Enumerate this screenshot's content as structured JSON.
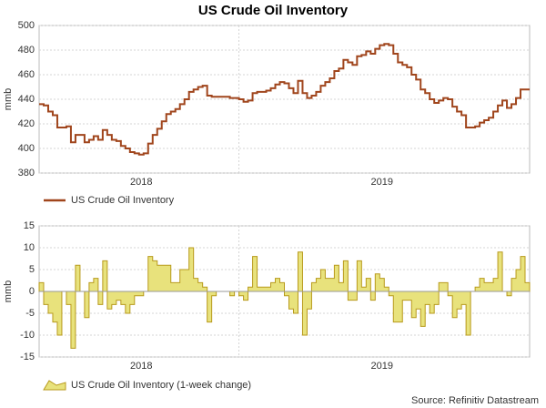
{
  "title": "US Crude Oil Inventory",
  "source": "Source: Refinitiv Datastream",
  "chart_data": [
    {
      "type": "line",
      "ylabel": "mmb",
      "categories": [
        null,
        null,
        null,
        null,
        null,
        null,
        null,
        null,
        null,
        null,
        null,
        null,
        null,
        null,
        null,
        null,
        null,
        null,
        null,
        null,
        null,
        null,
        "2018",
        null,
        null,
        null,
        null,
        null,
        null,
        null,
        null,
        null,
        null,
        null,
        null,
        null,
        null,
        null,
        null,
        null,
        null,
        null,
        null,
        null,
        null,
        null,
        null,
        null,
        null,
        null,
        null,
        null,
        null,
        null,
        null,
        null,
        null,
        null,
        null,
        null,
        null,
        null,
        null,
        null,
        null,
        null,
        null,
        null,
        null,
        null,
        null,
        null,
        null,
        null,
        null,
        "2019",
        null,
        null,
        null,
        null,
        null,
        null,
        null,
        null,
        null,
        null,
        null,
        null,
        null,
        null,
        null,
        null,
        null,
        null,
        null,
        null,
        null,
        null,
        null,
        null,
        null,
        null,
        null,
        null,
        null,
        null,
        null,
        null
      ],
      "series": [
        {
          "name": "US Crude Oil Inventory",
          "color": "#a0451c",
          "values": [
            436,
            435,
            430,
            427,
            417,
            417,
            418,
            405,
            411,
            411,
            405,
            407,
            410,
            407,
            415,
            411,
            407,
            406,
            402,
            400,
            397,
            396,
            395,
            396,
            404,
            411,
            416,
            422,
            428,
            430,
            432,
            436,
            440,
            446,
            448,
            450,
            451,
            443,
            442,
            442,
            442,
            442,
            441,
            441,
            440,
            438,
            439,
            445,
            446,
            446,
            447,
            449,
            452,
            454,
            453,
            449,
            445,
            455,
            445,
            441,
            443,
            446,
            451,
            454,
            457,
            463,
            465,
            472,
            470,
            468,
            475,
            476,
            479,
            477,
            481,
            484,
            485,
            484,
            477,
            470,
            468,
            466,
            460,
            456,
            448,
            445,
            440,
            437,
            439,
            441,
            440,
            434,
            430,
            427,
            417,
            417,
            418,
            421,
            423,
            425,
            430,
            435,
            439,
            433,
            436,
            441,
            448,
            448
          ]
        }
      ],
      "ylim": [
        380,
        500
      ],
      "yticks": [
        380,
        400,
        420,
        440,
        460,
        480,
        500
      ],
      "grid": true
    },
    {
      "type": "area",
      "ylabel": "mmb",
      "categories": [
        null,
        null,
        null,
        null,
        null,
        null,
        null,
        null,
        null,
        null,
        null,
        null,
        null,
        null,
        null,
        null,
        null,
        null,
        null,
        null,
        null,
        null,
        "2018",
        null,
        null,
        null,
        null,
        null,
        null,
        null,
        null,
        null,
        null,
        null,
        null,
        null,
        null,
        null,
        null,
        null,
        null,
        null,
        null,
        null,
        null,
        null,
        null,
        null,
        null,
        null,
        null,
        null,
        null,
        null,
        null,
        null,
        null,
        null,
        null,
        null,
        null,
        null,
        null,
        null,
        null,
        null,
        null,
        null,
        null,
        null,
        null,
        null,
        null,
        null,
        null,
        "2019",
        null,
        null,
        null,
        null,
        null,
        null,
        null,
        null,
        null,
        null,
        null,
        null,
        null,
        null,
        null,
        null,
        null,
        null,
        null,
        null,
        null,
        null,
        null,
        null,
        null,
        null,
        null,
        null,
        null,
        null,
        null,
        null
      ],
      "series": [
        {
          "name": "US Crude Oil Inventory (1-week change)",
          "color": "#e8e27c",
          "values": [
            2,
            -3,
            -5,
            -7,
            -10,
            0,
            -3,
            -13,
            6,
            0,
            -6,
            2,
            3,
            -3,
            7,
            -4,
            -3,
            -2,
            -3,
            -5,
            -3,
            -1,
            -1,
            0,
            8,
            7,
            6,
            6,
            6,
            2,
            2,
            5,
            5,
            10,
            3,
            2,
            1,
            -7,
            -1,
            0,
            0,
            0,
            -1,
            0,
            -1,
            -2,
            1,
            8,
            1,
            1,
            1,
            2,
            3,
            2,
            -1,
            -4,
            -5,
            9,
            -10,
            -4,
            2,
            3,
            5,
            3,
            3,
            6,
            2,
            7,
            -2,
            -2,
            7,
            1,
            3,
            -2,
            4,
            3,
            1,
            -1,
            -7,
            -7,
            -2,
            -2,
            -6,
            -4,
            -8,
            -3,
            -5,
            -3,
            2,
            2,
            -1,
            -6,
            -4,
            -3,
            -10,
            0,
            1,
            3,
            2,
            2,
            3,
            9,
            0,
            -1,
            3,
            5,
            8,
            2
          ]
        }
      ],
      "ylim": [
        -15,
        15
      ],
      "yticks": [
        -15,
        -10,
        -5,
        0,
        5,
        10,
        15
      ],
      "grid": true
    }
  ]
}
